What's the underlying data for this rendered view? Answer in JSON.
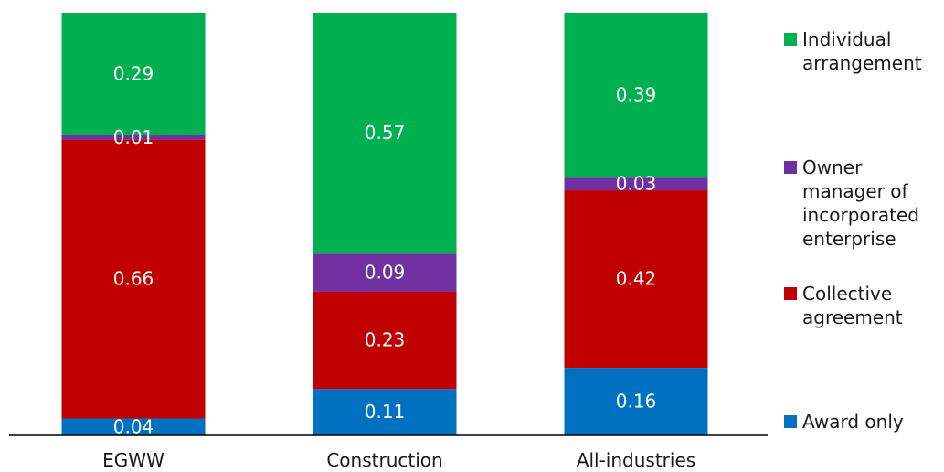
{
  "chart_data": {
    "type": "bar",
    "stacked": true,
    "categories": [
      "EGWW",
      "Construction",
      "All-industries"
    ],
    "series": [
      {
        "name": "Award only",
        "color": "#0070c0",
        "values": [
          0.04,
          0.11,
          0.16
        ]
      },
      {
        "name": "Collective agreement",
        "color": "#c00000",
        "values": [
          0.66,
          0.23,
          0.42
        ]
      },
      {
        "name": "Owner manager of incorporated enterprise",
        "color": "#7030a0",
        "values": [
          0.01,
          0.09,
          0.03
        ]
      },
      {
        "name": "Individual arrangement",
        "color": "#00b050",
        "values": [
          0.29,
          0.57,
          0.39
        ]
      }
    ],
    "labels": [
      [
        "0.04",
        "0.11",
        "0.16"
      ],
      [
        "0.66",
        "0.23",
        "0.42"
      ],
      [
        "0.01",
        "0.09",
        "0.03"
      ],
      [
        "0.29",
        "0.57",
        "0.39"
      ]
    ],
    "ylim": [
      0,
      1
    ],
    "grid": false,
    "legend_position": "right"
  },
  "legend": {
    "items": [
      {
        "label": "Individual arrangement",
        "color": "#00b050"
      },
      {
        "label": "Owner manager of incorporated enterprise",
        "color": "#7030a0"
      },
      {
        "label": "Collective agreement",
        "color": "#c00000"
      },
      {
        "label": "Award only",
        "color": "#0070c0"
      }
    ]
  }
}
